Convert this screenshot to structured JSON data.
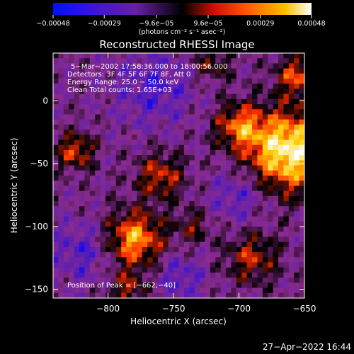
{
  "chart_data": {
    "type": "heatmap",
    "title": "Reconstructed RHESSI Image",
    "xlabel": "Heliocentric X (arcsec)",
    "ylabel": "Heliocentric Y (arcsec)",
    "xlim": [
      -842,
      -650
    ],
    "ylim": [
      -157,
      38
    ],
    "x_ticks": [
      -800,
      -750,
      -700,
      -650
    ],
    "y_ticks": [
      -150,
      -100,
      -50,
      0
    ],
    "x_tick_labels": [
      "−800",
      "−750",
      "−700",
      "−650"
    ],
    "y_tick_labels": [
      "−150",
      "−100",
      "−50",
      "0"
    ],
    "colorbar": {
      "min": -0.00048,
      "max": 0.00048,
      "ticks": [
        -0.00048,
        -0.00029,
        -9.6e-05,
        9.6e-05,
        0.00029,
        0.00048
      ],
      "tick_labels": [
        "−0.00048",
        "−0.00029",
        "−9.6e−05",
        "9.6e−05",
        "0.00029",
        "0.00048"
      ],
      "unit_label": "(photons cm⁻² s⁻¹ asec⁻²)"
    },
    "annotations": [
      "5−Mar−2002 17:58:36.000 to 18:00:56.000",
      "Detectors: 3F 4F 5F 6F 7F 8F, Att 0",
      "Energy Range: 25.0 − 50.0 keV",
      "Clean     Total counts: 1.65E+03"
    ],
    "peak_label": "Position of Peak = [−662,−40]",
    "peak": [
      -662,
      -40
    ],
    "grid": false,
    "colormap": [
      "#0000ff",
      "#5e1fb0",
      "#8a2b8e",
      "#000000",
      "#ff2a00",
      "#ffd000",
      "#ffffff"
    ]
  },
  "footer": {
    "timestamp": "27−Apr−2022 16:44"
  }
}
